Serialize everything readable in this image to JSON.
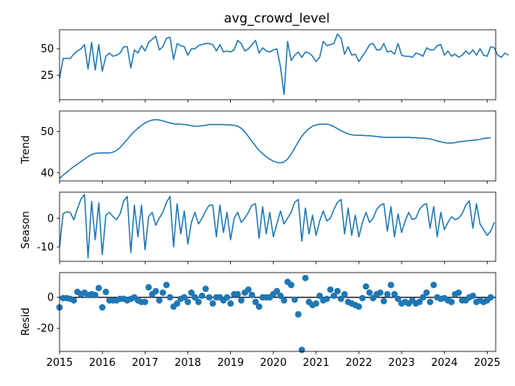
{
  "chart_data": [
    {
      "type": "line",
      "title": "avg_crowd_level",
      "ylabel": "",
      "ylim": [
        2,
        68
      ],
      "yticks": [
        25,
        50
      ],
      "x_start_year": 2015,
      "x_step_months": 1,
      "series": [
        {
          "color": "#1f77b4",
          "values": [
            22,
            41,
            41,
            41,
            45,
            48,
            50,
            54,
            31,
            56,
            30,
            54,
            29,
            43,
            46,
            43,
            44,
            46,
            52,
            52,
            32,
            49,
            46,
            53,
            48,
            56,
            59,
            62,
            49,
            52,
            60,
            61,
            40,
            55,
            53,
            52,
            44,
            50,
            50,
            53,
            54,
            55,
            55,
            54,
            48,
            54,
            47,
            48,
            47,
            49,
            58,
            55,
            48,
            50,
            54,
            58,
            46,
            51,
            48,
            47,
            49,
            50,
            33,
            7,
            57,
            39,
            44,
            47,
            42,
            47,
            46,
            43,
            38,
            42,
            57,
            53,
            54,
            55,
            64,
            60,
            45,
            52,
            44,
            45,
            38,
            43,
            48,
            54,
            55,
            49,
            49,
            55,
            47,
            48,
            45,
            55,
            44,
            43,
            43,
            42,
            46,
            45,
            43,
            51,
            49,
            49,
            53,
            54,
            44,
            48,
            43,
            45,
            42,
            44,
            48,
            45,
            49,
            44,
            50,
            44,
            43,
            52,
            51,
            44,
            42,
            46,
            44
          ]
        }
      ]
    },
    {
      "type": "line",
      "title": "",
      "ylabel": "Trend",
      "ylim": [
        38,
        55
      ],
      "yticks": [
        40,
        50
      ],
      "x_start_year": 2015,
      "x_step_months": 1,
      "series": [
        {
          "color": "#1f77b4",
          "values": [
            38.6,
            39.4,
            40.1,
            40.8,
            41.5,
            42.1,
            42.7,
            43.3,
            43.9,
            44.4,
            44.7,
            44.8,
            44.8,
            44.8,
            44.8,
            45.0,
            45.4,
            46.1,
            47.1,
            48.1,
            49.1,
            50.0,
            50.8,
            51.5,
            52.1,
            52.5,
            52.8,
            52.9,
            52.8,
            52.6,
            52.3,
            52.1,
            51.9,
            51.8,
            51.8,
            51.7,
            51.6,
            51.4,
            51.3,
            51.3,
            51.4,
            51.5,
            51.7,
            51.7,
            51.7,
            51.7,
            51.7,
            51.6,
            51.6,
            51.5,
            51.3,
            50.8,
            49.9,
            48.8,
            47.6,
            46.5,
            45.4,
            44.6,
            43.9,
            43.3,
            42.8,
            42.5,
            42.4,
            42.6,
            43.3,
            44.5,
            46.0,
            47.5,
            48.9,
            49.9,
            50.7,
            51.3,
            51.6,
            51.8,
            51.8,
            51.8,
            51.6,
            51.2,
            50.7,
            50.2,
            49.8,
            49.4,
            49.2,
            49.1,
            49.1,
            49.1,
            49.0,
            49.0,
            48.9,
            48.8,
            48.7,
            48.6,
            48.6,
            48.6,
            48.6,
            48.6,
            48.6,
            48.6,
            48.6,
            48.5,
            48.5,
            48.4,
            48.4,
            48.3,
            48.2,
            48.0,
            47.7,
            47.5,
            47.3,
            47.2,
            47.2,
            47.3,
            47.5,
            47.6,
            47.7,
            47.8,
            47.9,
            48.0,
            48.1,
            48.3,
            48.4,
            48.5
          ]
        }
      ]
    },
    {
      "type": "line",
      "title": "",
      "ylabel": "Season",
      "ylim": [
        -15,
        9
      ],
      "yticks": [
        -10,
        0
      ],
      "x_start_year": 2015,
      "x_step_months": 1,
      "series": [
        {
          "color": "#1f77b4",
          "values": [
            -10,
            1.5,
            2.2,
            2,
            -0.6,
            3.2,
            6.6,
            8.2,
            -13.8,
            5.8,
            -7.5,
            5.3,
            -12.6,
            1,
            2,
            0.5,
            -0.5,
            1.5,
            6,
            7.5,
            -12,
            4.5,
            -6.5,
            4.5,
            -11,
            0.5,
            2,
            -2.5,
            0,
            2,
            5.5,
            7.5,
            -10,
            5,
            -5.5,
            2.5,
            -9,
            -1.5,
            2,
            -2,
            0,
            2.5,
            4.5,
            4.5,
            -6.5,
            4.5,
            -5,
            2,
            -7.5,
            0,
            2,
            -1.5,
            0,
            2,
            4.5,
            5,
            -7,
            4,
            -5.5,
            2,
            -6.5,
            -2,
            2.5,
            -2,
            0,
            2,
            5.5,
            6.5,
            -8,
            3.5,
            -5.5,
            1,
            -6,
            -1,
            2.5,
            -1,
            0,
            3,
            5.5,
            6.5,
            -5.5,
            3.5,
            -6,
            1,
            -6.5,
            -1.5,
            2,
            -1.5,
            0,
            3,
            4.5,
            5,
            -4.5,
            4,
            -6.5,
            1.5,
            -5,
            -1,
            2,
            -0.5,
            0,
            3,
            4.5,
            5,
            -3.5,
            4,
            -6.5,
            2,
            -4,
            -1.5,
            0.5,
            -0.5,
            0,
            1.5,
            4.5,
            6,
            -3.5,
            5,
            -2,
            -4,
            -6,
            -4.5,
            -1.5
          ]
        }
      ]
    },
    {
      "type": "scatter",
      "title": "",
      "ylabel": "Resid",
      "ylim": [
        -35,
        16
      ],
      "yticks": [
        -20,
        0
      ],
      "zero_line": true,
      "x_start_year": 2015,
      "x_step_months": 1,
      "xlim": [
        2015,
        2025.2
      ],
      "xticks": [
        "2015",
        "2016",
        "2017",
        "2018",
        "2019",
        "2020",
        "2021",
        "2022",
        "2023",
        "2024",
        "2025"
      ],
      "series": [
        {
          "color": "#1f77b4",
          "values": [
            -6.5,
            -0.5,
            -0.5,
            -1,
            -2,
            3.5,
            2,
            3,
            1.5,
            2,
            1.5,
            6,
            -6.5,
            3.5,
            -2,
            -2,
            -2,
            -1,
            -1,
            -2,
            -1,
            0,
            -2,
            -3,
            -3,
            6.5,
            2,
            4,
            -2,
            3,
            8,
            0,
            -6,
            -4,
            -1,
            0,
            -3,
            3,
            0,
            -3,
            1,
            5.5,
            0,
            -4,
            0,
            0,
            -2,
            0,
            -4,
            2,
            2,
            -2,
            3,
            5,
            1.5,
            -3,
            -6,
            0,
            0,
            0,
            2,
            4,
            1,
            -2,
            10,
            8,
            -1.5,
            -11,
            -34,
            12.5,
            -3,
            -5,
            -4,
            1,
            -2,
            -1,
            5,
            1,
            4,
            -1,
            2,
            -3,
            -4,
            -5,
            -6,
            -0.5,
            7,
            3,
            -0.5,
            2,
            3,
            -2.5,
            2,
            8,
            2,
            -1,
            -4,
            -3,
            -4,
            -2,
            -4,
            -3,
            0,
            3,
            -3,
            8,
            0,
            -1,
            -0.5,
            -2,
            -3,
            2,
            3,
            -2,
            -2,
            0,
            1,
            -3,
            -2,
            -3,
            -2,
            0
          ]
        }
      ]
    }
  ]
}
